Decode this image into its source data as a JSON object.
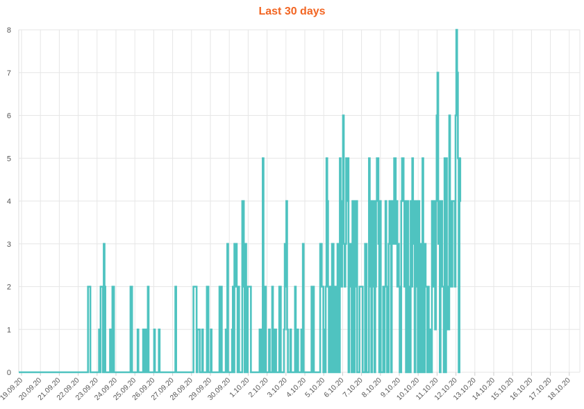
{
  "chart_data": {
    "type": "line",
    "title": "Last 30 days",
    "xlabel": "",
    "ylabel": "",
    "ylim": [
      0,
      8
    ],
    "yticks": [
      0,
      1,
      2,
      3,
      4,
      5,
      6,
      7,
      8
    ],
    "grid": true,
    "legend": "none",
    "x_range": [
      "19.09.20",
      "19.10.20"
    ],
    "x_ticks": [
      "19.09.20",
      "20.09.20",
      "21.09.20",
      "22.09.20",
      "23.09.20",
      "24.09.20",
      "25.09.20",
      "26.09.20",
      "27.09.20",
      "28.09.20",
      "29.09.20",
      "30.09.20",
      "1.10.20",
      "2.10.20",
      "3.10.20",
      "4.10.20",
      "5.10.20",
      "6.10.20",
      "7.10.20",
      "8.10.20",
      "9.10.20",
      "10.10.20",
      "11.10.20",
      "12.10.20",
      "13.10.20",
      "14.10.20",
      "15.10.20",
      "16.10.20",
      "17.10.20",
      "18.10.20"
    ],
    "colors": {
      "series": "#4fc3c0",
      "title": "#f26522",
      "grid": "#e6e6e6"
    },
    "series": [
      {
        "step": "hourly",
        "values": [
          0,
          0,
          0,
          0,
          0,
          0,
          0,
          0,
          0,
          0,
          0,
          0,
          0,
          0,
          0,
          0,
          0,
          0,
          0,
          0,
          0,
          0,
          0,
          0,
          0,
          0,
          0,
          0,
          0,
          0,
          0,
          0,
          0,
          0,
          0,
          0,
          0,
          0,
          0,
          0,
          0,
          0,
          0,
          0,
          0,
          0,
          0,
          0,
          0,
          0,
          0,
          0,
          0,
          0,
          0,
          0,
          0,
          0,
          0,
          0,
          0,
          0,
          0,
          0,
          0,
          0,
          0,
          0,
          0,
          0,
          0,
          0,
          0,
          0,
          0,
          0,
          0,
          0,
          0,
          0,
          0,
          0,
          0,
          0,
          0,
          0,
          0,
          0,
          2,
          2,
          2,
          0,
          0,
          0,
          0,
          0,
          0,
          0,
          0,
          0,
          0,
          0,
          1,
          0,
          2,
          2,
          2,
          0,
          3,
          2,
          0,
          0,
          0,
          0,
          0,
          0,
          1,
          0,
          0,
          2,
          2,
          0,
          0,
          0,
          0,
          0,
          0,
          0,
          0,
          0,
          0,
          0,
          0,
          0,
          0,
          0,
          0,
          0,
          0,
          0,
          0,
          0,
          2,
          2,
          0,
          0,
          0,
          0,
          0,
          0,
          0,
          1,
          0,
          0,
          0,
          0,
          0,
          0,
          1,
          0,
          1,
          1,
          0,
          0,
          2,
          0,
          0,
          0,
          0,
          0,
          0,
          0,
          1,
          0,
          0,
          0,
          0,
          0,
          1,
          0,
          0,
          0,
          0,
          0,
          0,
          0,
          0,
          0,
          0,
          0,
          0,
          0,
          0,
          0,
          0,
          0,
          0,
          0,
          0,
          2,
          0,
          0,
          0,
          0,
          0,
          0,
          0,
          0,
          0,
          0,
          0,
          0,
          0,
          0,
          0,
          0,
          0,
          0,
          0,
          0,
          0,
          0,
          2,
          2,
          2,
          2,
          0,
          1,
          1,
          1,
          0,
          0,
          0,
          1,
          0,
          0,
          0,
          0,
          0,
          2,
          2,
          0,
          0,
          0,
          1,
          0,
          0,
          0,
          0,
          0,
          0,
          0,
          0,
          0,
          0,
          2,
          0,
          2,
          0,
          0,
          0,
          0,
          0,
          1,
          0,
          3,
          0,
          0,
          0,
          0,
          0,
          1,
          2,
          0,
          3,
          2,
          3,
          2,
          0,
          2,
          0,
          0,
          0,
          0,
          4,
          4,
          2,
          0,
          3,
          1,
          0,
          2,
          2,
          2,
          2,
          0,
          0,
          0,
          0,
          0,
          0,
          0,
          0,
          0,
          0,
          0,
          1,
          0,
          1,
          0,
          5,
          2,
          0,
          2,
          0,
          0,
          0,
          0,
          1,
          0,
          0,
          0,
          2,
          0,
          0,
          1,
          1,
          0,
          0,
          0,
          0,
          2,
          2,
          0,
          0,
          0,
          0,
          1,
          3,
          2,
          4,
          1,
          0,
          0,
          0,
          1,
          0,
          0,
          0,
          0,
          0,
          2,
          0,
          0,
          1,
          0,
          0,
          0,
          0,
          1,
          0,
          3,
          0,
          0,
          0,
          0,
          0,
          0,
          0,
          0,
          0,
          0,
          2,
          0,
          2,
          0,
          0,
          0,
          0,
          0,
          0,
          0,
          0,
          3,
          3,
          2,
          2,
          0,
          1,
          0,
          2,
          5,
          4,
          2,
          0,
          0,
          2,
          0,
          3,
          3,
          0,
          1,
          2,
          0,
          0,
          3,
          0,
          0,
          5,
          2,
          2,
          4,
          6,
          3,
          2,
          3,
          5,
          4,
          5,
          0,
          2,
          3,
          2,
          0,
          4,
          0,
          0,
          4,
          2,
          4,
          0,
          0,
          0,
          2,
          2,
          2,
          2,
          0,
          0,
          0,
          3,
          3,
          0,
          0,
          0,
          5,
          4,
          2,
          0,
          4,
          2,
          4,
          0,
          2,
          4,
          5,
          5,
          3,
          0,
          4,
          0,
          0,
          0,
          2,
          0,
          2,
          4,
          2,
          0,
          0,
          3,
          4,
          4,
          0,
          3,
          4,
          3,
          5,
          5,
          3,
          4,
          2,
          3,
          2,
          0,
          0,
          4,
          5,
          5,
          4,
          2,
          4,
          0,
          0,
          4,
          2,
          0,
          0,
          4,
          2,
          5,
          4,
          3,
          0,
          4,
          2,
          4,
          0,
          4,
          0,
          3,
          0,
          0,
          5,
          1,
          0,
          3,
          2,
          2,
          0,
          2,
          0,
          0,
          1,
          0,
          4,
          4,
          2,
          4,
          1,
          4,
          6,
          7,
          3,
          4,
          0,
          4,
          4,
          2,
          2,
          0,
          5,
          0,
          5,
          2,
          1,
          1,
          6,
          4,
          2,
          2,
          4,
          4,
          4,
          2,
          6,
          8,
          7,
          5,
          0,
          4,
          5
        ]
      }
    ]
  }
}
